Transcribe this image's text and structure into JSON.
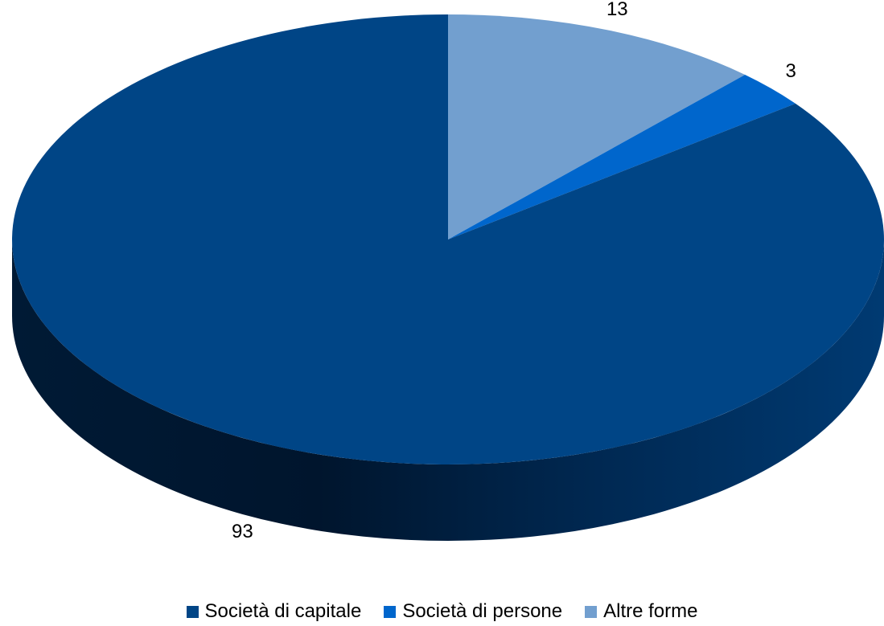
{
  "chart_data": {
    "type": "pie",
    "three_d": true,
    "legend_position": "bottom",
    "series": [
      {
        "name": "Società di capitale",
        "value": 93,
        "label": "93",
        "color": "#004586"
      },
      {
        "name": "Società di persone",
        "value": 3,
        "label": "3",
        "color": "#0066cc"
      },
      {
        "name": "Altre forme",
        "value": 13,
        "label": "13",
        "color": "#729fcf"
      }
    ]
  }
}
